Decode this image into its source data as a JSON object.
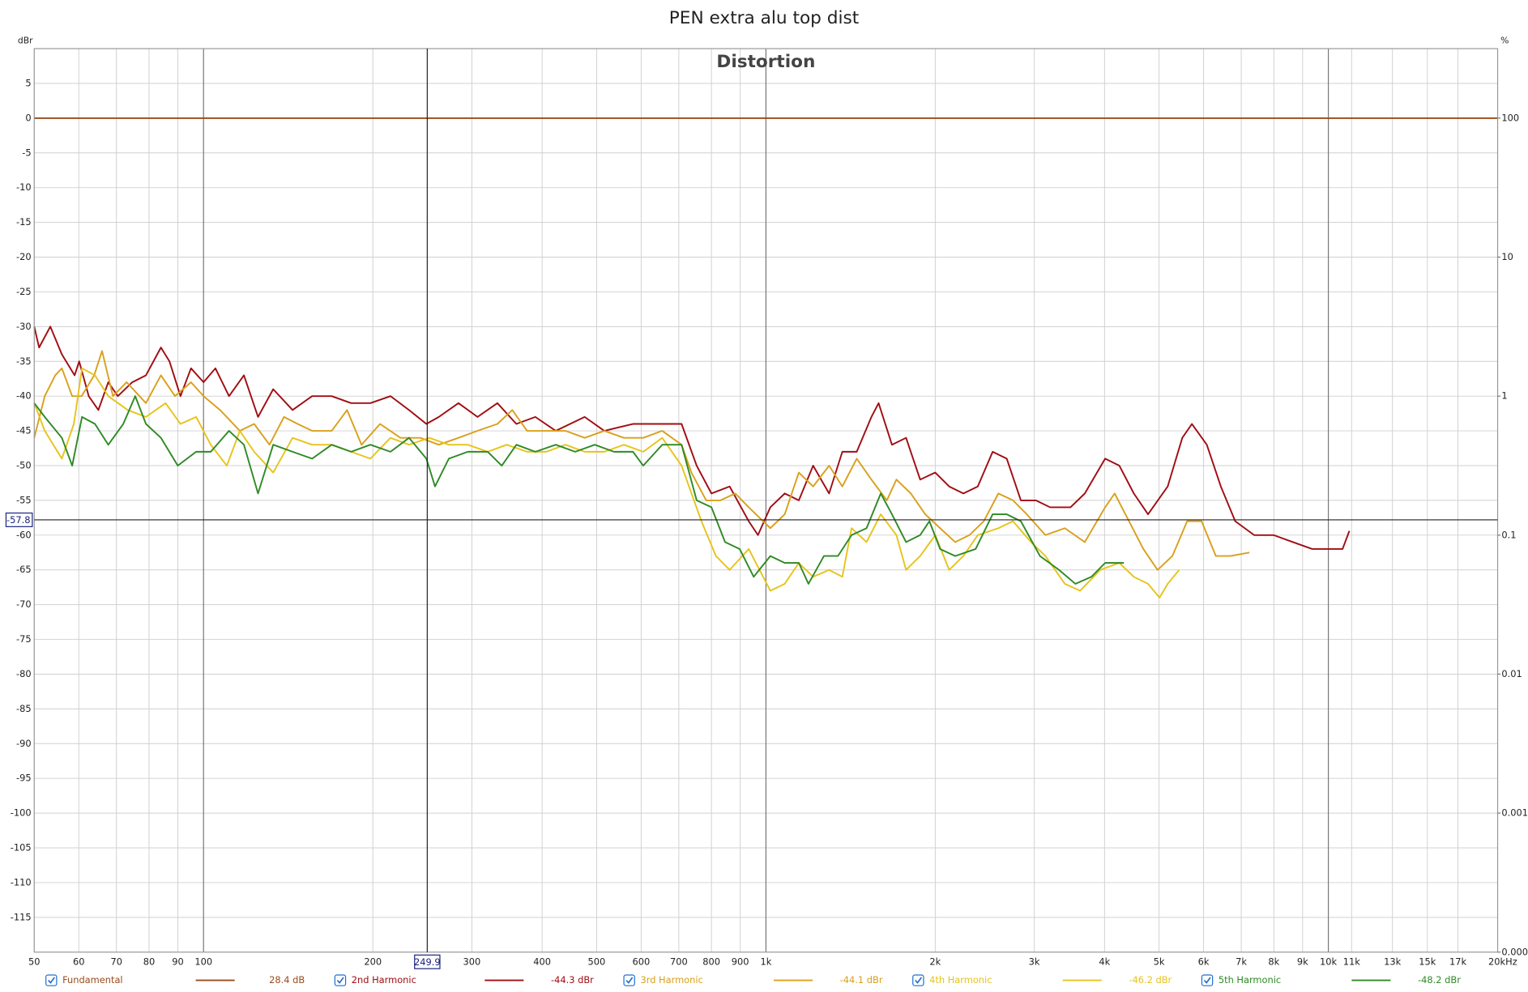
{
  "chart_data": {
    "type": "line",
    "title": "PEN extra alu top dist",
    "subtitle": "Distortion",
    "ylabel": "dBr",
    "y2label": "%",
    "xlabel": "Hz",
    "xscale": "log",
    "y2scale": "log",
    "xlim": [
      50,
      20000
    ],
    "ylim": [
      -120,
      10
    ],
    "y2lim": [
      0.0001,
      316.2
    ],
    "xticks": [
      50,
      60,
      70,
      80,
      90,
      100,
      200,
      300,
      400,
      500,
      600,
      700,
      800,
      900,
      {
        "value": 1000,
        "label": "1k"
      },
      {
        "value": 2000,
        "label": "2k"
      },
      {
        "value": 3000,
        "label": "3k"
      },
      {
        "value": 4000,
        "label": "4k"
      },
      {
        "value": 5000,
        "label": "5k"
      },
      {
        "value": 6000,
        "label": "6k"
      },
      {
        "value": 7000,
        "label": "7k"
      },
      {
        "value": 8000,
        "label": "8k"
      },
      {
        "value": 9000,
        "label": "9k"
      },
      {
        "value": 10000,
        "label": "10k"
      },
      {
        "value": 11000,
        "label": "11k"
      },
      {
        "value": 13000,
        "label": "13k"
      },
      {
        "value": 15000,
        "label": "15k"
      },
      {
        "value": 17000,
        "label": "17k"
      },
      {
        "value": 20000,
        "label": "20k"
      }
    ],
    "yticks": [
      -115,
      -110,
      -105,
      -100,
      -95,
      -90,
      -85,
      -80,
      -75,
      -70,
      -65,
      -60,
      -55,
      -50,
      -45,
      -40,
      -35,
      -30,
      -25,
      -20,
      -15,
      -10,
      -5,
      0,
      5
    ],
    "y2ticks": [
      100,
      10,
      1,
      0.1,
      0.01,
      0.001,
      0.0001
    ],
    "grid": true,
    "cursor": {
      "x": 249.9,
      "y": -57.8
    },
    "series": [
      {
        "name": "Fundamental",
        "color": "#9a4b1c",
        "reading": "28.4 dB",
        "x": [
          50,
          20000
        ],
        "values": [
          0,
          0
        ]
      },
      {
        "name": "2nd Harmonic",
        "color": "#a00d12",
        "reading": "-44.3 dBr",
        "x": [
          50,
          51,
          53.4,
          56,
          59,
          60.1,
          62.5,
          65,
          67.7,
          70.4,
          74.7,
          79,
          84,
          87,
          91,
          95,
          100,
          105,
          111,
          118,
          125,
          133,
          144,
          156,
          169,
          183,
          198,
          215,
          232,
          249,
          262,
          284,
          307,
          333,
          360,
          389,
          423,
          476,
          516,
          580,
          654,
          708,
          753,
          800,
          862,
          932,
          968,
          1018,
          1080,
          1144,
          1213,
          1295,
          1367,
          1450,
          1540,
          1586,
          1675,
          1775,
          1880,
          2000,
          2117,
          2244,
          2380,
          2530,
          2680,
          2840,
          3020,
          3200,
          3480,
          3690,
          4010,
          4250,
          4510,
          4780,
          5180,
          5500,
          5720,
          6080,
          6440,
          6830,
          7380,
          7990,
          8650,
          9360,
          10150,
          10600,
          10900
        ],
        "values": [
          -30,
          -33,
          -30,
          -34,
          -37,
          -35,
          -40,
          -42,
          -38,
          -40,
          -38,
          -37,
          -33,
          -35,
          -40,
          -36,
          -38,
          -36,
          -40,
          -37,
          -43,
          -39,
          -42,
          -40,
          -40,
          -41,
          -41,
          -40,
          -42,
          -44,
          -43,
          -41,
          -43,
          -41,
          -44,
          -43,
          -45,
          -43,
          -45,
          -44,
          -44,
          -44,
          -50,
          -54,
          -53,
          -58,
          -60,
          -56,
          -54,
          -55,
          -50,
          -54,
          -48,
          -48,
          -43,
          -41,
          -47,
          -46,
          -52,
          -51,
          -53,
          -54,
          -53,
          -48,
          -49,
          -55,
          -55,
          -56,
          -56,
          -54,
          -49,
          -50,
          -54,
          -57,
          -53,
          -46,
          -44,
          -47,
          -53,
          -58,
          -60,
          -60,
          -61,
          -62,
          -62,
          -62,
          -59.4
        ]
      },
      {
        "name": "3rd Harmonic",
        "color": "#d9a01c",
        "reading": "-44.1 dBr",
        "x": [
          50,
          52.2,
          54.5,
          56,
          58.4,
          60.7,
          63.9,
          66,
          69,
          73,
          79,
          84,
          89,
          95,
          100,
          107,
          116,
          123,
          131,
          139,
          147,
          156,
          169,
          180,
          191,
          206,
          224,
          243,
          262,
          284,
          307,
          333,
          354,
          376,
          407,
          440,
          476,
          516,
          559,
          605,
          654,
          708,
          737,
          783,
          830,
          882,
          932,
          1018,
          1080,
          1144,
          1213,
          1295,
          1367,
          1450,
          1540,
          1641,
          1706,
          1810,
          1920,
          2040,
          2170,
          2300,
          2440,
          2590,
          2750,
          2910,
          3140,
          3400,
          3690,
          4010,
          4170,
          4420,
          4690,
          4970,
          5280,
          5610,
          5950,
          6310,
          6700,
          7240
        ],
        "values": [
          -46,
          -40,
          -37,
          -36,
          -40,
          -40,
          -37,
          -33.5,
          -40,
          -38,
          -41,
          -37,
          -40,
          -38,
          -40,
          -42,
          -45,
          -44,
          -47,
          -43,
          -44,
          -45,
          -45,
          -42,
          -47,
          -44,
          -46,
          -46,
          -47,
          -46,
          -45,
          -44,
          -42,
          -45,
          -45,
          -45,
          -46,
          -45,
          -46,
          -46,
          -45,
          -47,
          -51,
          -55,
          -55,
          -54,
          -56,
          -59,
          -57,
          -51,
          -53,
          -50,
          -53,
          -49,
          -52,
          -55,
          -52,
          -54,
          -57,
          -59,
          -61,
          -60,
          -58,
          -54,
          -55,
          -57,
          -60,
          -59,
          -61,
          -56,
          -54,
          -58,
          -62,
          -65,
          -63,
          -58,
          -58,
          -63,
          -63,
          -62.5
        ]
      },
      {
        "name": "4th Harmonic",
        "color": "#e6c41c",
        "reading": "-46.2 dBr",
        "x": [
          50,
          52.2,
          56,
          58.8,
          60.8,
          64.1,
          67.7,
          73.3,
          79,
          85.6,
          91,
          97,
          103,
          110,
          116,
          123,
          133,
          144,
          156,
          169,
          183,
          198,
          215,
          232,
          252,
          273,
          295,
          320,
          346,
          376,
          407,
          440,
          476,
          516,
          559,
          605,
          654,
          708,
          768,
          815,
          862,
          932,
          1018,
          1080,
          1144,
          1213,
          1295,
          1367,
          1420,
          1510,
          1600,
          1706,
          1775,
          1880,
          2000,
          2117,
          2244,
          2380,
          2590,
          2750,
          2960,
          3140,
          3400,
          3620,
          3930,
          4250,
          4510,
          4780,
          5010,
          5180,
          5430
        ],
        "values": [
          -41,
          -45,
          -49,
          -44,
          -36,
          -37,
          -40,
          -42,
          -43,
          -41,
          -44,
          -43,
          -47,
          -50,
          -45,
          -48,
          -51,
          -46,
          -47,
          -47,
          -48,
          -49,
          -46,
          -47,
          -46,
          -47,
          -47,
          -48,
          -47,
          -48,
          -48,
          -47,
          -48,
          -48,
          -47,
          -48,
          -46,
          -50,
          -58,
          -63,
          -65,
          -62,
          -68,
          -67,
          -64,
          -66,
          -65,
          -66,
          -59,
          -61,
          -57,
          -60,
          -65,
          -63,
          -60,
          -65,
          -63,
          -60,
          -59,
          -58,
          -61,
          -63,
          -67,
          -68,
          -65,
          -64,
          -66,
          -67,
          -69,
          -67,
          -65
        ]
      },
      {
        "name": "5th Harmonic",
        "color": "#2f8a25",
        "reading": "-48.2 dBr",
        "x": [
          50,
          52.2,
          56,
          58.4,
          60.8,
          64.1,
          67.7,
          72,
          75.6,
          79,
          84,
          90,
          97,
          103,
          111,
          118,
          125,
          133,
          144,
          156,
          169,
          183,
          198,
          215,
          232,
          249,
          258,
          273,
          295,
          320,
          339,
          360,
          389,
          423,
          458,
          496,
          537,
          580,
          605,
          654,
          708,
          753,
          800,
          846,
          898,
          951,
          1018,
          1080,
          1144,
          1190,
          1268,
          1343,
          1420,
          1510,
          1600,
          1675,
          1775,
          1880,
          1953,
          2040,
          2170,
          2360,
          2530,
          2680,
          2840,
          3070,
          3320,
          3550,
          3790,
          4010,
          4330
        ],
        "values": [
          -41,
          -43,
          -46,
          -50,
          -43,
          -44,
          -47,
          -44,
          -40,
          -44,
          -46,
          -50,
          -48,
          -48,
          -45,
          -47,
          -54,
          -47,
          -48,
          -49,
          -47,
          -48,
          -47,
          -48,
          -46,
          -49,
          -53,
          -49,
          -48,
          -48,
          -50,
          -47,
          -48,
          -47,
          -48,
          -47,
          -48,
          -48,
          -50,
          -47,
          -47,
          -55,
          -56,
          -61,
          -62,
          -66,
          -63,
          -64,
          -64,
          -67,
          -63,
          -63,
          -60,
          -59,
          -54,
          -57,
          -61,
          -60,
          -58,
          -62,
          -63,
          -62,
          -57,
          -57,
          -58,
          -63,
          -65,
          -67,
          -66,
          -64,
          -64
        ]
      }
    ]
  }
}
